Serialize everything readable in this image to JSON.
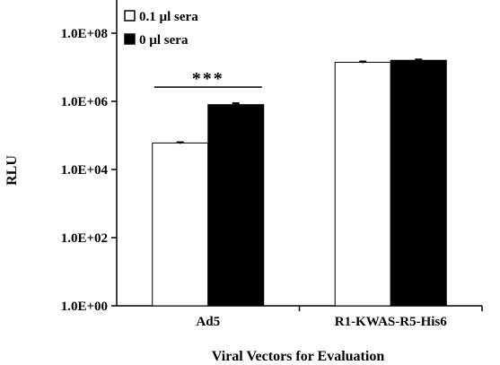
{
  "chart_data": {
    "type": "bar",
    "title": "",
    "xlabel": "Viral Vectors for Evaluation",
    "ylabel": "RLU",
    "yscale": "log",
    "ylim": [
      1,
      100000000
    ],
    "yticks": [
      1,
      100,
      10000,
      1000000,
      100000000
    ],
    "ytick_labels": [
      "1.0E+00",
      "1.0E+02",
      "1.0E+04",
      "1.0E+06",
      "1.0E+08"
    ],
    "categories": [
      "Ad5",
      "R1-KWAS-R5-His6"
    ],
    "series": [
      {
        "name": "0.1 µl sera",
        "values": [
          60000,
          14000000
        ],
        "errors": [
          3000,
          800000
        ],
        "fill": "#ffffff"
      },
      {
        "name": "0 µl sera",
        "values": [
          800000,
          16000000
        ],
        "errors": [
          80000,
          900000
        ],
        "fill": "#000000"
      }
    ],
    "legend_position": "top-left",
    "grid": false,
    "annotations": [
      {
        "text": "***",
        "category": "Ad5"
      }
    ]
  }
}
